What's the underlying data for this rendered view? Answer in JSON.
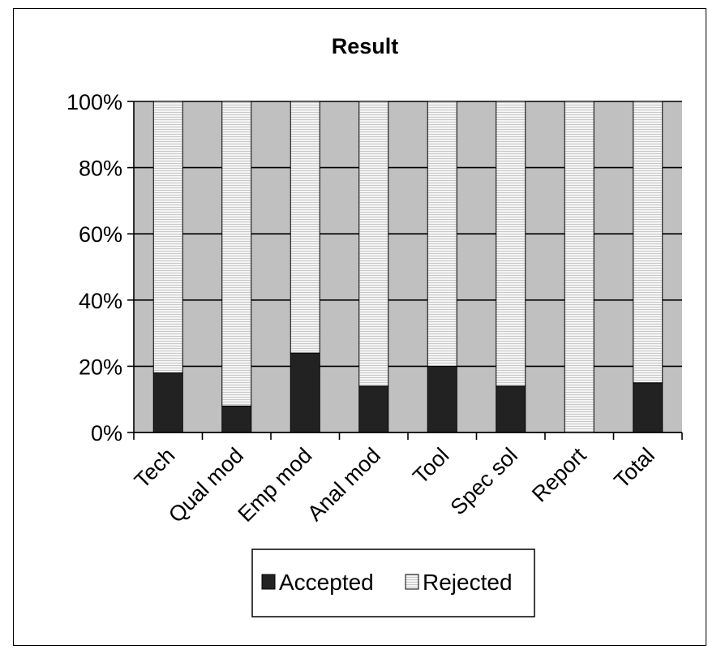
{
  "chart_data": {
    "type": "bar",
    "stacked": true,
    "title": "Result",
    "categories": [
      "Tech",
      "Qual mod",
      "Emp mod",
      "Anal mod",
      "Tool",
      "Spec sol",
      "Report",
      "Total"
    ],
    "series": [
      {
        "name": "Accepted",
        "values": [
          18,
          8,
          24,
          14,
          20,
          14,
          0,
          15
        ],
        "color": "#222222"
      },
      {
        "name": "Rejected",
        "values": [
          82,
          92,
          76,
          86,
          80,
          86,
          100,
          85
        ],
        "color": "#eeeeee"
      }
    ],
    "yticks": [
      "0%",
      "20%",
      "40%",
      "60%",
      "80%",
      "100%"
    ],
    "ylim": [
      0,
      100
    ],
    "grid": true,
    "plot_background": "#c0c0c0",
    "legend_position": "bottom"
  }
}
